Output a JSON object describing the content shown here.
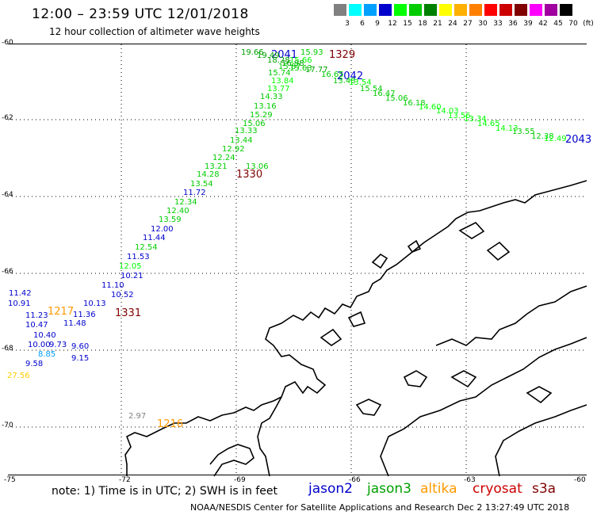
{
  "header": {
    "title": "12:00 – 23:59 UTC 12/01/2018",
    "subtitle": "12 hour collection of altimeter wave heights"
  },
  "scale": {
    "labels": [
      "3",
      "6",
      "9",
      "12",
      "15",
      "18",
      "21",
      "24",
      "27",
      "30",
      "33",
      "36",
      "39",
      "42",
      "45",
      "70",
      "(ft)"
    ],
    "colors": [
      "#808080",
      "#00ffff",
      "#00a0ff",
      "#0000cc",
      "#00ff00",
      "#00cc00",
      "#008000",
      "#ffff00",
      "#ffb000",
      "#ff8000",
      "#ff0000",
      "#cc0000",
      "#800000",
      "#ff00ff",
      "#a000a0",
      "#000000"
    ]
  },
  "axes": {
    "lat_labels": [
      "-60",
      "-62",
      "-64",
      "-66",
      "-68",
      "-70"
    ],
    "lon_labels": [
      "-75",
      "-72",
      "-69",
      "-66",
      "-63",
      "-60"
    ]
  },
  "satellites": [
    {
      "name": "jason2",
      "color": "#0000cc"
    },
    {
      "name": "jason3",
      "color": "#00a000"
    },
    {
      "name": "altika",
      "color": "#ff9900"
    },
    {
      "name": "cryosat",
      "color": "#cc0000"
    },
    {
      "name": "s3a",
      "color": "#800000"
    }
  ],
  "note": "note: 1) Time is in UTC; 2) SWH is in feet",
  "credit": "NOAA/NESDIS Center for Satellite Applications and Research     Dec  2 13:27:49 UTC 2018",
  "tracks": [
    {
      "label": "2041",
      "color": "#0000cc"
    },
    {
      "label": "1329",
      "color": "#800000"
    },
    {
      "label": "2042",
      "color": "#0000cc"
    },
    {
      "label": "2043",
      "color": "#0000cc"
    },
    {
      "label": "1330",
      "color": "#800000"
    },
    {
      "label": "1217",
      "color": "#ff9900"
    },
    {
      "label": "1331",
      "color": "#800000"
    },
    {
      "label": "1216",
      "color": "#ff9900"
    }
  ],
  "observations": [
    {
      "v": "19.66",
      "c": "#00a000"
    },
    {
      "v": "19.49",
      "c": "#00a000"
    },
    {
      "v": "15.93",
      "c": "#00cc00"
    },
    {
      "v": "15.66",
      "c": "#00ff00"
    },
    {
      "v": "18.28",
      "c": "#00a000"
    },
    {
      "v": "16.98",
      "c": "#00a000"
    },
    {
      "v": "15.87",
      "c": "#00cc00"
    },
    {
      "v": "15.63",
      "c": "#00cc00"
    },
    {
      "v": "17.77",
      "c": "#00a000"
    },
    {
      "v": "15.74",
      "c": "#00cc00"
    },
    {
      "v": "16.65",
      "c": "#00cc00"
    },
    {
      "v": "13.84",
      "c": "#00ff00"
    },
    {
      "v": "13.48",
      "c": "#00cc00"
    },
    {
      "v": "13.54",
      "c": "#00ff00"
    },
    {
      "v": "13.77",
      "c": "#00ff00"
    },
    {
      "v": "15.54",
      "c": "#00cc00"
    },
    {
      "v": "14.33",
      "c": "#00cc00"
    },
    {
      "v": "16.47",
      "c": "#00cc00"
    },
    {
      "v": "15.06",
      "c": "#00cc00"
    },
    {
      "v": "13.16",
      "c": "#00cc00"
    },
    {
      "v": "16.18",
      "c": "#00cc00"
    },
    {
      "v": "15.29",
      "c": "#00cc00"
    },
    {
      "v": "14.60",
      "c": "#00ff00"
    },
    {
      "v": "14.03",
      "c": "#00ff00"
    },
    {
      "v": "15.06",
      "c": "#00cc00"
    },
    {
      "v": "13.56",
      "c": "#00ff00"
    },
    {
      "v": "13.33",
      "c": "#00cc00"
    },
    {
      "v": "13.34",
      "c": "#00ff00"
    },
    {
      "v": "14.65",
      "c": "#00ff00"
    },
    {
      "v": "13.44",
      "c": "#00cc00"
    },
    {
      "v": "14.13",
      "c": "#00ff00"
    },
    {
      "v": "13.55",
      "c": "#00cc00"
    },
    {
      "v": "12.92",
      "c": "#00cc00"
    },
    {
      "v": "12.38",
      "c": "#00cc00"
    },
    {
      "v": "12.24",
      "c": "#00cc00"
    },
    {
      "v": "12.49",
      "c": "#00ff00"
    },
    {
      "v": "13.06",
      "c": "#00cc00"
    },
    {
      "v": "13.21",
      "c": "#00cc00"
    },
    {
      "v": "14.28",
      "c": "#00cc00"
    },
    {
      "v": "13.54",
      "c": "#00cc00"
    },
    {
      "v": "11.72",
      "c": "#0000cc"
    },
    {
      "v": "12.34",
      "c": "#00cc00"
    },
    {
      "v": "12.40",
      "c": "#00cc00"
    },
    {
      "v": "13.59",
      "c": "#00cc00"
    },
    {
      "v": "12.00",
      "c": "#0000cc"
    },
    {
      "v": "11.44",
      "c": "#0000cc"
    },
    {
      "v": "12.54",
      "c": "#00cc00"
    },
    {
      "v": "11.53",
      "c": "#0000cc"
    },
    {
      "v": "12.05",
      "c": "#00ff00"
    },
    {
      "v": "10.21",
      "c": "#0000cc"
    },
    {
      "v": "11.10",
      "c": "#0000cc"
    },
    {
      "v": "10.52",
      "c": "#0000cc"
    },
    {
      "v": "11.42",
      "c": "#0000cc"
    },
    {
      "v": "10.91",
      "c": "#0000cc"
    },
    {
      "v": "10.13",
      "c": "#0000cc"
    },
    {
      "v": "11.23",
      "c": "#0000cc"
    },
    {
      "v": "11.36",
      "c": "#0000cc"
    },
    {
      "v": "10.47",
      "c": "#0000cc"
    },
    {
      "v": "11.48",
      "c": "#0000cc"
    },
    {
      "v": "10.40",
      "c": "#0000cc"
    },
    {
      "v": "10.00",
      "c": "#0000cc"
    },
    {
      "v": "9.73",
      "c": "#0000cc"
    },
    {
      "v": "9.60",
      "c": "#0000cc"
    },
    {
      "v": "8.85",
      "c": "#00a0ff"
    },
    {
      "v": "9.15",
      "c": "#0000cc"
    },
    {
      "v": "9.58",
      "c": "#0000cc"
    },
    {
      "v": "27.56",
      "c": "#ffcc00"
    },
    {
      "v": "2.97",
      "c": "#808080"
    }
  ]
}
